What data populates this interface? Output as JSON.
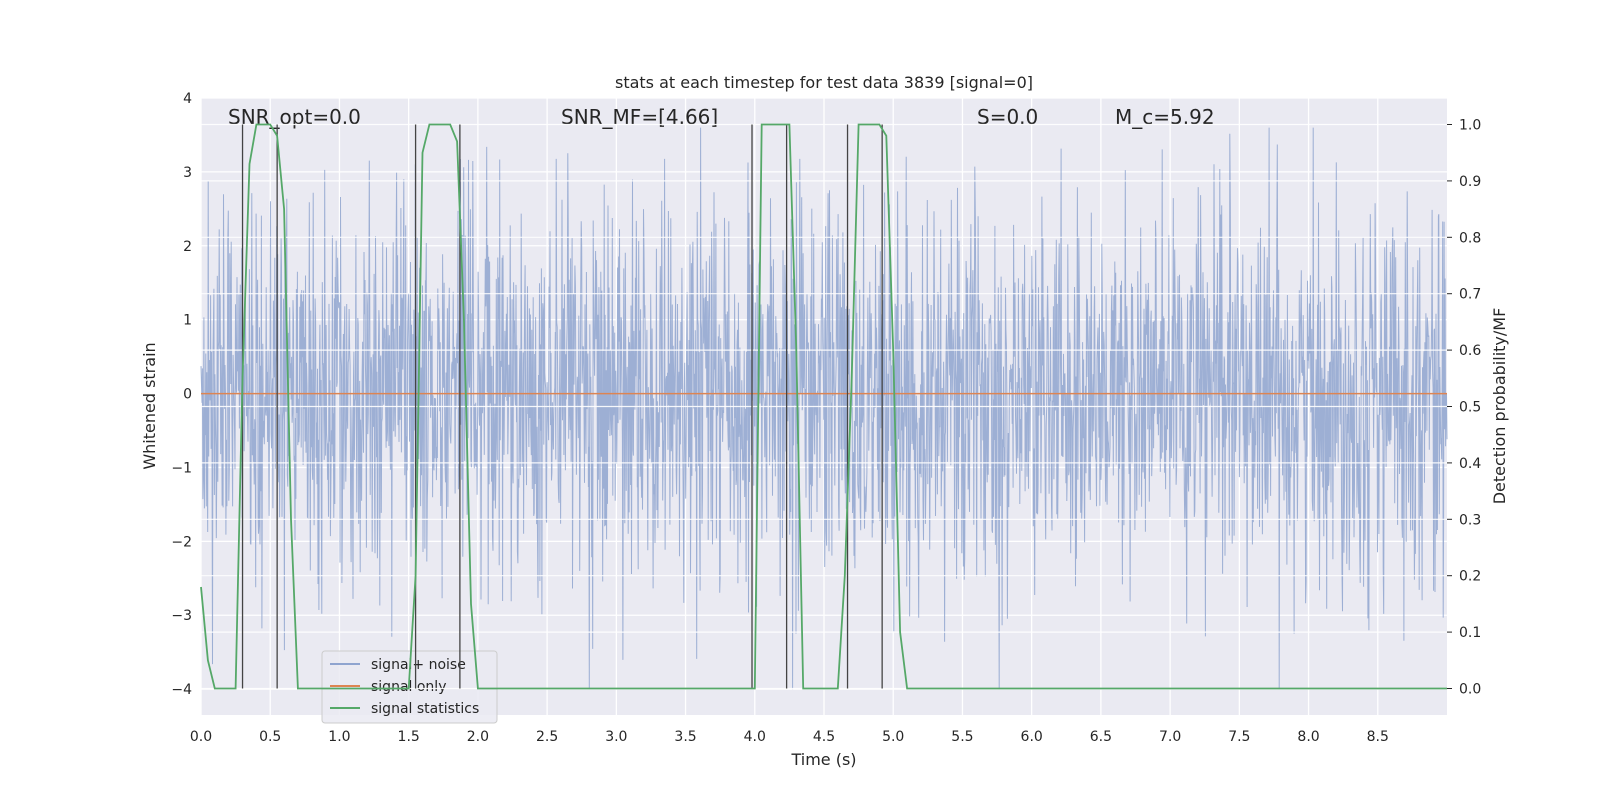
{
  "chart_data": {
    "type": "line",
    "title": "stats at each timestep for test data 3839 [signal=0]",
    "xlabel": "Time (s)",
    "ylabel": "Whitened strain",
    "y2label": "Detection probability/MF",
    "xlim": [
      0.0,
      9.0
    ],
    "ylim": [
      -4.35,
      4.0
    ],
    "y2lim": [
      -0.047,
      1.047
    ],
    "xticks": [
      "0.0",
      "0.5",
      "1.0",
      "1.5",
      "2.0",
      "2.5",
      "3.0",
      "3.5",
      "4.0",
      "4.5",
      "5.0",
      "5.5",
      "6.0",
      "6.5",
      "7.0",
      "7.5",
      "8.0",
      "8.5"
    ],
    "yticks": [
      "4",
      "3",
      "2",
      "1",
      "0",
      "−1",
      "−2",
      "−3",
      "−4"
    ],
    "y2ticks": [
      "1.0",
      "0.9",
      "0.8",
      "0.7",
      "0.6",
      "0.5",
      "0.4",
      "0.3",
      "0.2",
      "0.1",
      "0.0"
    ],
    "grid": true,
    "legend_position": "lower-left",
    "annotations": {
      "snr_opt": "SNR_opt=0.0",
      "snr_mf": "SNR_MF=[4.66]",
      "s_value": "S=0.0",
      "mc_value": "M_c=5.92"
    },
    "series": [
      {
        "name": "signal+ noise",
        "color": "#8fa4cf",
        "description_values": "gaussian whitened noise, typical amplitude about ±1.5, peaks to about ±3.6 over t=0.0–9.0 s"
      },
      {
        "name": "signal only",
        "color": "#dd8452",
        "x": [
          0.0,
          9.0
        ],
        "y": [
          0.0,
          0.0
        ]
      },
      {
        "name": "signal statistics",
        "color": "#55a868",
        "axis": "right",
        "x": [
          0.0,
          0.05,
          0.1,
          0.2,
          0.25,
          0.3,
          0.35,
          0.4,
          0.5,
          0.55,
          0.6,
          0.65,
          0.7,
          0.8,
          1.5,
          1.55,
          1.6,
          1.65,
          1.8,
          1.85,
          1.9,
          1.95,
          2.0,
          2.05,
          3.95,
          4.0,
          4.05,
          4.25,
          4.3,
          4.35,
          4.4,
          4.6,
          4.65,
          4.7,
          4.75,
          4.9,
          4.95,
          5.0,
          5.05,
          5.1,
          5.15,
          9.0
        ],
        "y": [
          0.18,
          0.05,
          0.0,
          0.0,
          0.0,
          0.55,
          0.93,
          1.0,
          1.0,
          0.98,
          0.85,
          0.3,
          0.0,
          0.0,
          0.0,
          0.2,
          0.95,
          1.0,
          1.0,
          0.97,
          0.65,
          0.15,
          0.0,
          0.0,
          0.0,
          0.0,
          1.0,
          1.0,
          0.6,
          0.0,
          0.0,
          0.0,
          0.2,
          0.55,
          1.0,
          1.0,
          0.98,
          0.6,
          0.1,
          0.0,
          0.0,
          0.0
        ]
      }
    ],
    "vertical_markers": [
      0.3,
      0.55,
      1.55,
      1.87,
      3.98,
      4.23,
      4.67,
      4.92
    ]
  },
  "legend": {
    "items": [
      {
        "label": "signal+ noise",
        "color": "#8fa4cf"
      },
      {
        "label": "signal only",
        "color": "#dd8452"
      },
      {
        "label": "signal statistics",
        "color": "#55a868"
      }
    ]
  }
}
